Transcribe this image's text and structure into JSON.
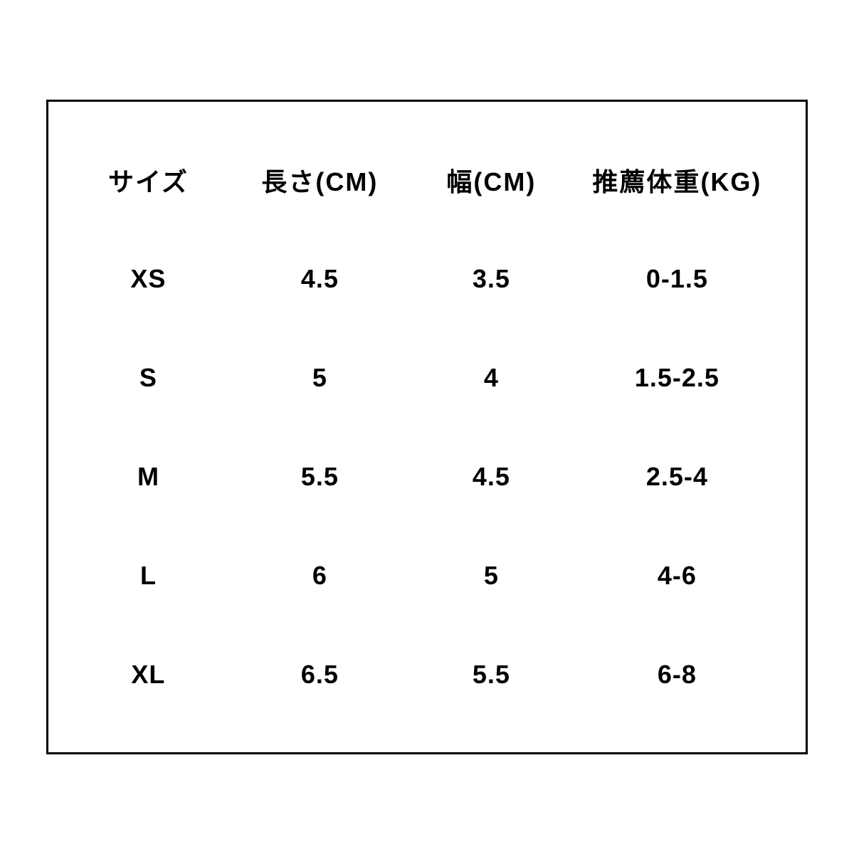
{
  "table": {
    "type": "table",
    "columns": [
      "サイズ",
      "長さ(CM)",
      "幅(CM)",
      "推薦体重(KG)"
    ],
    "rows": [
      [
        "XS",
        "4.5",
        "3.5",
        "0-1.5"
      ],
      [
        "S",
        "5",
        "4",
        "1.5-2.5"
      ],
      [
        "M",
        "5.5",
        "4.5",
        "2.5-4"
      ],
      [
        "L",
        "6",
        "5",
        "4-6"
      ],
      [
        "XL",
        "6.5",
        "5.5",
        "6-8"
      ]
    ],
    "border_color": "#000000",
    "border_width": 3,
    "text_color": "#000000",
    "background_color": "#ffffff",
    "header_fontsize": 36,
    "data_fontsize": 36,
    "font_weight": "bold",
    "column_widths_pct": [
      22,
      26,
      22,
      30
    ],
    "alignment": "center"
  }
}
